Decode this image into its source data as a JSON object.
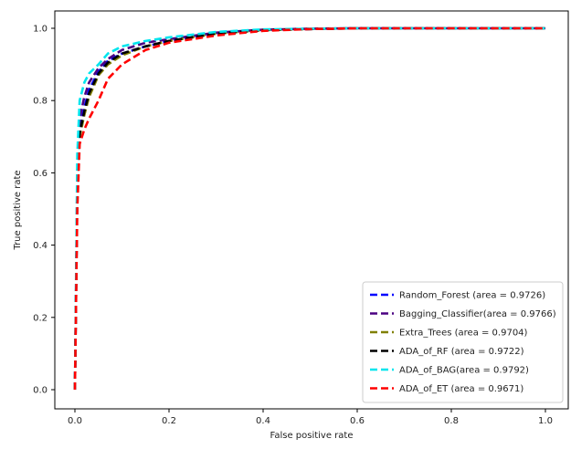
{
  "chart_data": {
    "type": "line",
    "title": "",
    "xlabel": "False positive rate",
    "ylabel": "True positive rate",
    "xlim": [
      0.0,
      1.0
    ],
    "ylim": [
      0.0,
      1.0
    ],
    "xticks": [
      "0.0",
      "0.2",
      "0.4",
      "0.6",
      "0.8",
      "1.0"
    ],
    "yticks": [
      "0.0",
      "0.2",
      "0.4",
      "0.6",
      "0.8",
      "1.0"
    ],
    "grid": false,
    "legend_position": "lower-right",
    "series": [
      {
        "name": "Random_Forest (area = 0.9726)",
        "color": "#0000ff",
        "x": [
          0.0,
          0.005,
          0.01,
          0.02,
          0.03,
          0.05,
          0.07,
          0.1,
          0.15,
          0.2,
          0.3,
          0.4,
          0.5,
          0.6,
          0.8,
          1.0
        ],
        "y": [
          0.0,
          0.55,
          0.72,
          0.78,
          0.83,
          0.88,
          0.91,
          0.93,
          0.95,
          0.965,
          0.985,
          0.995,
          0.998,
          1.0,
          1.0,
          1.0
        ]
      },
      {
        "name": "Bagging_Classifier(area = 0.9766)",
        "color": "#4b0082",
        "x": [
          0.0,
          0.005,
          0.01,
          0.02,
          0.03,
          0.05,
          0.07,
          0.1,
          0.15,
          0.2,
          0.3,
          0.4,
          0.5,
          0.6,
          0.8,
          1.0
        ],
        "y": [
          0.0,
          0.6,
          0.75,
          0.81,
          0.85,
          0.89,
          0.915,
          0.94,
          0.96,
          0.97,
          0.988,
          0.996,
          0.999,
          1.0,
          1.0,
          1.0
        ]
      },
      {
        "name": "Extra_Trees (area = 0.9704)",
        "color": "#808000",
        "x": [
          0.0,
          0.005,
          0.01,
          0.02,
          0.03,
          0.05,
          0.07,
          0.1,
          0.15,
          0.2,
          0.3,
          0.4,
          0.5,
          0.6,
          0.8,
          1.0
        ],
        "y": [
          0.0,
          0.55,
          0.7,
          0.76,
          0.81,
          0.87,
          0.9,
          0.925,
          0.95,
          0.965,
          0.985,
          0.995,
          0.998,
          1.0,
          1.0,
          1.0
        ]
      },
      {
        "name": "ADA_of_RF (area = 0.9722)",
        "color": "#000000",
        "x": [
          0.0,
          0.005,
          0.01,
          0.02,
          0.03,
          0.05,
          0.07,
          0.1,
          0.15,
          0.2,
          0.3,
          0.4,
          0.5,
          0.6,
          0.8,
          1.0
        ],
        "y": [
          0.0,
          0.56,
          0.71,
          0.77,
          0.82,
          0.875,
          0.905,
          0.93,
          0.95,
          0.965,
          0.985,
          0.995,
          0.998,
          1.0,
          1.0,
          1.0
        ]
      },
      {
        "name": "ADA_of_BAG(area = 0.9792)",
        "color": "#00e5ee",
        "x": [
          0.0,
          0.005,
          0.01,
          0.02,
          0.03,
          0.05,
          0.07,
          0.1,
          0.15,
          0.2,
          0.3,
          0.4,
          0.5,
          0.6,
          0.8,
          1.0
        ],
        "y": [
          0.0,
          0.65,
          0.8,
          0.85,
          0.875,
          0.9,
          0.93,
          0.95,
          0.965,
          0.975,
          0.99,
          0.997,
          0.999,
          1.0,
          1.0,
          1.0
        ]
      },
      {
        "name": "ADA_of_ET (area = 0.9671)",
        "color": "#ff0000",
        "x": [
          0.0,
          0.005,
          0.01,
          0.02,
          0.03,
          0.05,
          0.07,
          0.1,
          0.15,
          0.2,
          0.3,
          0.4,
          0.5,
          0.6,
          0.8,
          1.0
        ],
        "y": [
          0.0,
          0.5,
          0.68,
          0.72,
          0.75,
          0.8,
          0.86,
          0.9,
          0.94,
          0.96,
          0.98,
          0.993,
          0.998,
          1.0,
          1.0,
          1.0
        ]
      }
    ]
  }
}
